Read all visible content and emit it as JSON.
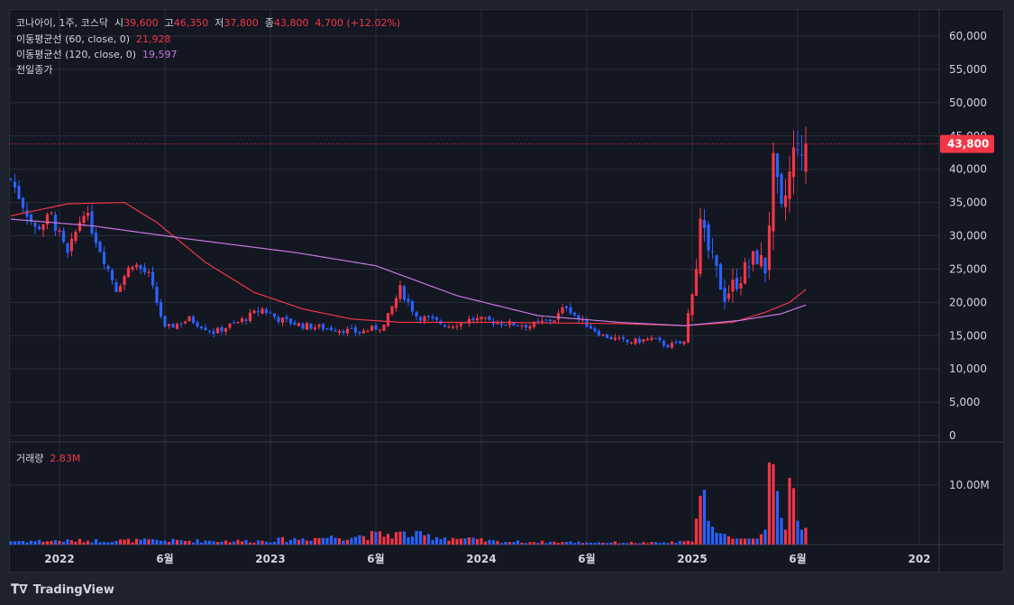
{
  "colors": {
    "up": "#f23645",
    "down": "#2962ff",
    "ma60": "#f23645",
    "ma120": "#c678dd",
    "grid": "#2a2e39",
    "text": "#d1d4dc"
  },
  "legend": {
    "symbol": "코나아이, 1주, 코스닥",
    "open_label": "시",
    "open_value": "39,600",
    "high_label": "고",
    "high_value": "46,350",
    "low_label": "저",
    "low_value": "37,800",
    "close_label": "종",
    "close_value": "43,800",
    "change": "4,700 (+12.02%)",
    "ma60_label": "이동평균선 (60, close, 0)",
    "ma60_value": "21,928",
    "ma120_label": "이동평균선 (120, close, 0)",
    "ma120_value": "19,597",
    "prev_close_label": "전일종가",
    "volume_label": "거래량",
    "volume_value": "2.83M"
  },
  "last_price_tag": "43,800",
  "footer": {
    "brand": "TradingView"
  },
  "chart_data": {
    "type": "candlestick",
    "price_axis": {
      "ticks": [
        "60,000",
        "55,000",
        "50,000",
        "45,000",
        "40,000",
        "35,000",
        "30,000",
        "25,000",
        "20,000",
        "15,000",
        "10,000",
        "5,000",
        "0"
      ],
      "tick_values": [
        60000,
        55000,
        50000,
        45000,
        40000,
        35000,
        30000,
        25000,
        20000,
        15000,
        10000,
        5000,
        0
      ],
      "ylim": [
        0,
        62000
      ]
    },
    "volume_axis": {
      "ticks": [
        "10.00M"
      ],
      "tick_values": [
        10000000
      ]
    },
    "x_axis": {
      "labels": [
        "2022",
        "6월",
        "2023",
        "6월",
        "2024",
        "6월",
        "2025",
        "6월",
        "202"
      ],
      "label_weeks": [
        12,
        38,
        64,
        90,
        116,
        142,
        168,
        194,
        224
      ]
    },
    "close_anchors": [
      [
        0,
        38500
      ],
      [
        6,
        31000
      ],
      [
        10,
        33000
      ],
      [
        14,
        27000
      ],
      [
        18,
        34000
      ],
      [
        22,
        28000
      ],
      [
        26,
        22000
      ],
      [
        30,
        26000
      ],
      [
        34,
        24000
      ],
      [
        38,
        16000
      ],
      [
        44,
        17500
      ],
      [
        50,
        15500
      ],
      [
        56,
        17000
      ],
      [
        62,
        19000
      ],
      [
        66,
        17500
      ],
      [
        72,
        16500
      ],
      [
        80,
        16000
      ],
      [
        86,
        15500
      ],
      [
        92,
        16500
      ],
      [
        96,
        22000
      ],
      [
        100,
        18000
      ],
      [
        108,
        16500
      ],
      [
        114,
        17500
      ],
      [
        120,
        17000
      ],
      [
        128,
        16500
      ],
      [
        134,
        17500
      ],
      [
        137,
        19500
      ],
      [
        140,
        17500
      ],
      [
        146,
        15000
      ],
      [
        152,
        14000
      ],
      [
        158,
        14500
      ],
      [
        162,
        13500
      ],
      [
        166,
        14000
      ],
      [
        170,
        31000
      ],
      [
        173,
        26000
      ],
      [
        176,
        21000
      ],
      [
        180,
        24000
      ],
      [
        184,
        27000
      ],
      [
        186,
        25000
      ],
      [
        188,
        40000
      ],
      [
        190,
        33000
      ],
      [
        192,
        39000
      ],
      [
        194,
        45000
      ],
      [
        195,
        40000
      ],
      [
        196,
        43800
      ]
    ],
    "ma60_anchors": [
      [
        0,
        33000
      ],
      [
        14,
        34800
      ],
      [
        28,
        35000
      ],
      [
        36,
        32000
      ],
      [
        48,
        26000
      ],
      [
        60,
        21500
      ],
      [
        72,
        19000
      ],
      [
        84,
        17500
      ],
      [
        96,
        17000
      ],
      [
        120,
        17000
      ],
      [
        150,
        16800
      ],
      [
        166,
        16500
      ],
      [
        178,
        17000
      ],
      [
        186,
        18500
      ],
      [
        192,
        20000
      ],
      [
        196,
        21928
      ]
    ],
    "ma120_anchors": [
      [
        0,
        32500
      ],
      [
        20,
        31500
      ],
      [
        44,
        29500
      ],
      [
        70,
        27500
      ],
      [
        90,
        25500
      ],
      [
        110,
        21000
      ],
      [
        130,
        18000
      ],
      [
        150,
        17000
      ],
      [
        166,
        16500
      ],
      [
        180,
        17300
      ],
      [
        190,
        18300
      ],
      [
        196,
        19597
      ]
    ],
    "volume_anchors": [
      [
        0,
        0.6
      ],
      [
        30,
        0.7
      ],
      [
        60,
        0.6
      ],
      [
        96,
        1.8
      ],
      [
        120,
        0.5
      ],
      [
        160,
        0.3
      ],
      [
        168,
        0.5
      ],
      [
        170,
        8.2
      ],
      [
        171,
        9.2
      ],
      [
        172,
        4.0
      ],
      [
        174,
        2.0
      ],
      [
        176,
        1.8
      ],
      [
        178,
        1.0
      ],
      [
        184,
        1.0
      ],
      [
        186,
        2.5
      ],
      [
        187,
        13.8
      ],
      [
        188,
        13.5
      ],
      [
        190,
        4.5
      ],
      [
        191,
        2.5
      ],
      [
        192,
        11.2
      ],
      [
        193,
        9.5
      ],
      [
        194,
        4.0
      ],
      [
        195,
        2.5
      ],
      [
        196,
        2.83
      ]
    ]
  }
}
